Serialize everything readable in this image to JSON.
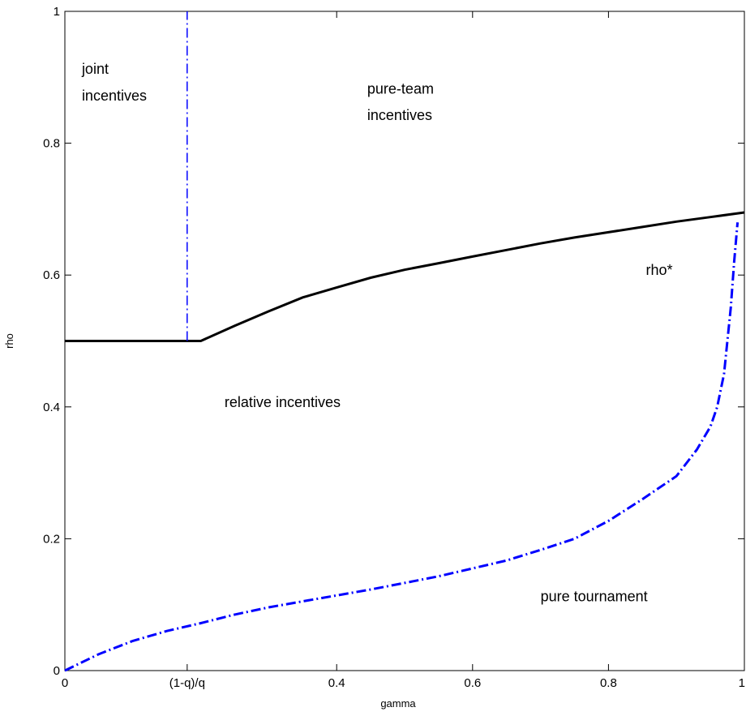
{
  "chart_data": {
    "type": "line",
    "title": "",
    "xlabel": "gamma",
    "ylabel": "rho",
    "xlim": [
      0,
      1
    ],
    "ylim": [
      0,
      1
    ],
    "grid": false,
    "x_ticks": [
      {
        "value": 0,
        "label": "0"
      },
      {
        "value": 0.18,
        "label": "(1-q)/q"
      },
      {
        "value": 0.4,
        "label": "0.4"
      },
      {
        "value": 0.6,
        "label": "0.6"
      },
      {
        "value": 0.8,
        "label": "0.8"
      },
      {
        "value": 1,
        "label": "1"
      }
    ],
    "y_ticks": [
      {
        "value": 0,
        "label": "0"
      },
      {
        "value": 0.2,
        "label": "0.2"
      },
      {
        "value": 0.4,
        "label": "0.4"
      },
      {
        "value": 0.6,
        "label": "0.6"
      },
      {
        "value": 0.8,
        "label": "0.8"
      },
      {
        "value": 1,
        "label": "1"
      }
    ],
    "series": [
      {
        "name": "rho*",
        "color": "#000000",
        "style": "solid",
        "points": [
          [
            0.0,
            0.5
          ],
          [
            0.18,
            0.5
          ],
          [
            0.2,
            0.5
          ],
          [
            0.25,
            0.523
          ],
          [
            0.3,
            0.545
          ],
          [
            0.35,
            0.566
          ],
          [
            0.4,
            0.581
          ],
          [
            0.45,
            0.596
          ],
          [
            0.5,
            0.608
          ],
          [
            0.55,
            0.618
          ],
          [
            0.6,
            0.628
          ],
          [
            0.65,
            0.638
          ],
          [
            0.7,
            0.648
          ],
          [
            0.75,
            0.657
          ],
          [
            0.8,
            0.665
          ],
          [
            0.85,
            0.673
          ],
          [
            0.9,
            0.681
          ],
          [
            0.95,
            0.688
          ],
          [
            1.0,
            0.695
          ]
        ]
      },
      {
        "color": "#0000ff",
        "style": "dashdot",
        "points": [
          [
            0.18,
            0.5
          ],
          [
            0.18,
            1.0
          ]
        ]
      },
      {
        "color": "#0000ff",
        "style": "dashdot",
        "points": [
          [
            0.0,
            0.0
          ],
          [
            0.05,
            0.025
          ],
          [
            0.1,
            0.045
          ],
          [
            0.15,
            0.06
          ],
          [
            0.2,
            0.072
          ],
          [
            0.25,
            0.085
          ],
          [
            0.3,
            0.096
          ],
          [
            0.35,
            0.105
          ],
          [
            0.4,
            0.114
          ],
          [
            0.45,
            0.123
          ],
          [
            0.5,
            0.133
          ],
          [
            0.55,
            0.143
          ],
          [
            0.6,
            0.155
          ],
          [
            0.65,
            0.167
          ],
          [
            0.7,
            0.183
          ],
          [
            0.75,
            0.2
          ],
          [
            0.8,
            0.227
          ],
          [
            0.85,
            0.26
          ],
          [
            0.9,
            0.295
          ],
          [
            0.93,
            0.335
          ],
          [
            0.95,
            0.37
          ],
          [
            0.96,
            0.4
          ],
          [
            0.97,
            0.45
          ],
          [
            0.98,
            0.55
          ],
          [
            0.985,
            0.62
          ],
          [
            0.99,
            0.68
          ]
        ]
      }
    ],
    "region_labels": [
      {
        "text": "joint",
        "x": 0.025,
        "y": 0.905
      },
      {
        "text": "incentives",
        "x": 0.025,
        "y": 0.865
      },
      {
        "text": "pure-team",
        "x": 0.445,
        "y": 0.875
      },
      {
        "text": "incentives",
        "x": 0.445,
        "y": 0.835
      },
      {
        "text": "rho*",
        "x": 0.855,
        "y": 0.6
      },
      {
        "text": "relative incentives",
        "x": 0.235,
        "y": 0.4
      },
      {
        "text": "pure tournament",
        "x": 0.7,
        "y": 0.105
      }
    ]
  }
}
